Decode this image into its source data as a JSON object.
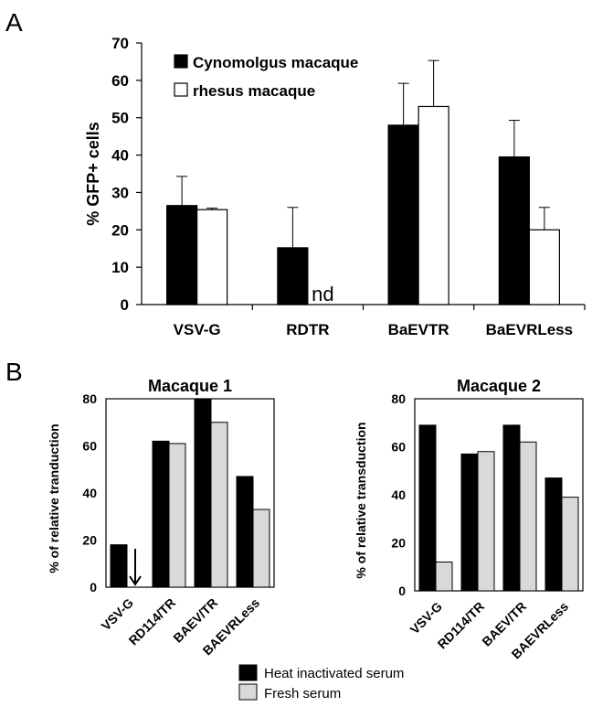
{
  "panels": {
    "a_label": "A",
    "b_label": "B"
  },
  "legend_b": {
    "heat": "Heat inactivated serum",
    "fresh": "Fresh serum"
  },
  "colors": {
    "black": "#000000",
    "white": "#ffffff",
    "gray": "#d9d9d9"
  },
  "chart_data": [
    {
      "id": "A",
      "type": "bar",
      "title": "",
      "xlabel": "",
      "ylabel": "% GFP+ cells",
      "ylim": [
        0,
        70
      ],
      "yticks": [
        0,
        10,
        20,
        30,
        40,
        50,
        60,
        70
      ],
      "categories": [
        "VSV-G",
        "RDTR",
        "BaEVTR",
        "BaEVRLess"
      ],
      "series": [
        {
          "name": "Cynomolgus macaque",
          "values": [
            26.5,
            15.2,
            48.0,
            39.5
          ],
          "errors": [
            7.8,
            10.8,
            11.2,
            9.8
          ],
          "color": "#000000"
        },
        {
          "name": "rhesus macaque",
          "values": [
            25.4,
            null,
            53.0,
            20.0
          ],
          "errors": [
            0.4,
            null,
            12.3,
            6.0
          ],
          "color": "#ffffff"
        }
      ],
      "annotations": [
        {
          "category": "RDTR",
          "series": "rhesus macaque",
          "text": "nd"
        }
      ]
    },
    {
      "id": "B1",
      "type": "bar",
      "title": "Macaque 1",
      "xlabel": "",
      "ylabel": "% of relative tranduction",
      "ylim": [
        0,
        80
      ],
      "yticks": [
        0,
        20,
        40,
        60,
        80
      ],
      "categories": [
        "VSV-G",
        "RD114/TR",
        "BAEV/TR",
        "BAEVRLess"
      ],
      "series": [
        {
          "name": "Heat inactivated serum",
          "values": [
            18,
            62,
            80,
            47
          ],
          "color": "#000000"
        },
        {
          "name": "Fresh serum",
          "values": [
            0,
            61,
            70,
            33
          ],
          "color": "#d9d9d9"
        }
      ],
      "annotations": [
        {
          "category": "VSV-G",
          "series": "Fresh serum",
          "marker": "down-arrow"
        }
      ]
    },
    {
      "id": "B2",
      "type": "bar",
      "title": "Macaque 2",
      "xlabel": "",
      "ylabel": "% of relative transduction",
      "ylim": [
        0,
        80
      ],
      "yticks": [
        0,
        20,
        40,
        60,
        80
      ],
      "categories": [
        "VSV-G",
        "RD114/TR",
        "BAEV/TR",
        "BAEVRLess"
      ],
      "series": [
        {
          "name": "Heat inactivated serum",
          "values": [
            69,
            57,
            69,
            47
          ],
          "color": "#000000"
        },
        {
          "name": "Fresh serum",
          "values": [
            12,
            58,
            62,
            39
          ],
          "color": "#d9d9d9"
        }
      ]
    }
  ]
}
